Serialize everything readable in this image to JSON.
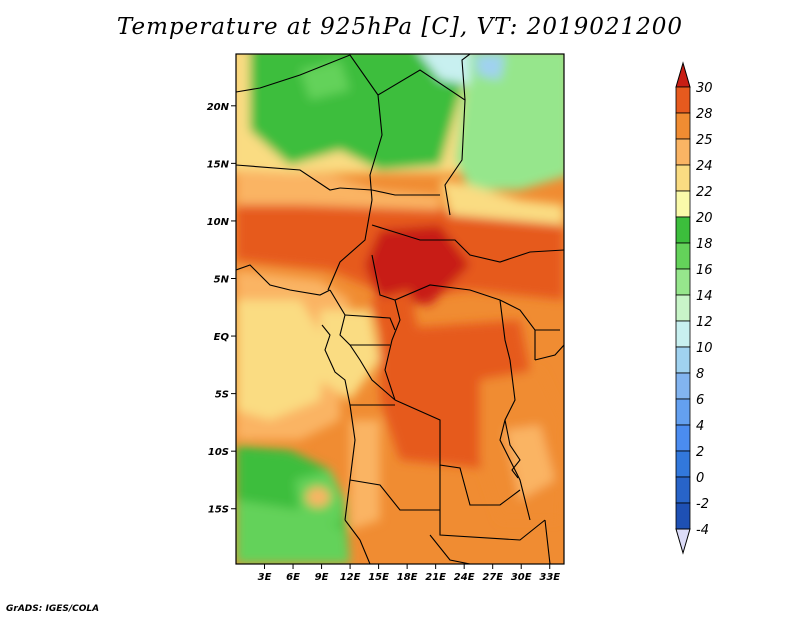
{
  "title": "Temperature at 925hPa [C], VT: 2019021200",
  "credit": "GrADS: IGES/COLA",
  "map": {
    "lon_range": [
      0,
      34.5
    ],
    "lat_range": [
      -19.8,
      24.5
    ],
    "lat_ticks": [
      {
        "value": 20,
        "label": "20N"
      },
      {
        "value": 15,
        "label": "15N"
      },
      {
        "value": 10,
        "label": "10N"
      },
      {
        "value": 5,
        "label": "5N"
      },
      {
        "value": 0,
        "label": "EQ"
      },
      {
        "value": -5,
        "label": "5S"
      },
      {
        "value": -10,
        "label": "10S"
      },
      {
        "value": -15,
        "label": "15S"
      }
    ],
    "lon_ticks": [
      {
        "value": 3,
        "label": "3E"
      },
      {
        "value": 6,
        "label": "6E"
      },
      {
        "value": 9,
        "label": "9E"
      },
      {
        "value": 12,
        "label": "12E"
      },
      {
        "value": 15,
        "label": "15E"
      },
      {
        "value": 18,
        "label": "18E"
      },
      {
        "value": 21,
        "label": "21E"
      },
      {
        "value": 24,
        "label": "24E"
      },
      {
        "value": 27,
        "label": "27E"
      },
      {
        "value": 30,
        "label": "30E"
      },
      {
        "value": 33,
        "label": "33E"
      }
    ]
  },
  "colorbar": {
    "levels": [
      "-4",
      "-2",
      "0",
      "2",
      "4",
      "6",
      "8",
      "10",
      "12",
      "14",
      "16",
      "18",
      "20",
      "22",
      "24",
      "25",
      "28",
      "30"
    ],
    "colors": [
      "#1e3c96",
      "#1e50b4",
      "#2864c8",
      "#3278dc",
      "#4b8cf0",
      "#64a0f0",
      "#82b4f0",
      "#a0d2f0",
      "#c8f0f0",
      "#c8f5c8",
      "#96e68c",
      "#64d25a",
      "#3cbe3c",
      "#fafaaa",
      "#fadc82",
      "#fab464",
      "#f08c32",
      "#e65a1e",
      "#c81e14"
    ],
    "low_arrow_color": "#dcdcf8"
  }
}
